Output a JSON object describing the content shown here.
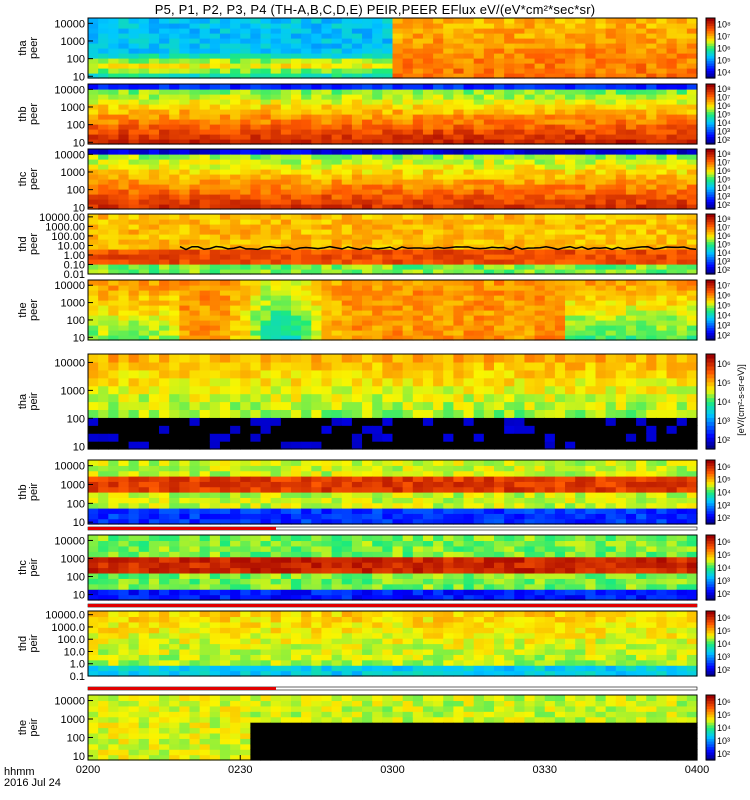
{
  "title": "P5, P1, P2, P3, P4 (TH-A,B,C,D,E) PEIR,PEER EFlux eV/(eV*cm²*sec*sr)",
  "footer": {
    "time_label": "hhmm",
    "date_label": "2016 Jul 24"
  },
  "colorbar_unit_label": "[eV/(cm²-s-sr-eV)]",
  "chart_data": [
    {
      "type": "heatmap",
      "panel": "tha-peer",
      "ylabel_lines": [
        "tha",
        "peer"
      ],
      "y_scale": "log",
      "ylim": [
        8,
        20000
      ],
      "yticks": [
        "10",
        "100",
        "1000",
        "10000"
      ],
      "colorbar_ticks": [
        "10⁴",
        "10⁵",
        "10⁶",
        "10⁷",
        "10⁸"
      ]
    },
    {
      "type": "heatmap",
      "panel": "thb-peer",
      "ylabel_lines": [
        "thb",
        "peer"
      ],
      "y_scale": "log",
      "ylim": [
        8,
        20000
      ],
      "yticks": [
        "10",
        "100",
        "1000",
        "10000"
      ],
      "colorbar_ticks": [
        "10²",
        "10³",
        "10⁴",
        "10⁵",
        "10⁶",
        "10⁷",
        "10⁸"
      ]
    },
    {
      "type": "heatmap",
      "panel": "thc-peer",
      "ylabel_lines": [
        "thc",
        "peer"
      ],
      "y_scale": "log",
      "ylim": [
        8,
        20000
      ],
      "yticks": [
        "10",
        "100",
        "1000",
        "10000"
      ],
      "colorbar_ticks": [
        "10²",
        "10³",
        "10⁴",
        "10⁵",
        "10⁶",
        "10⁷",
        "10⁸"
      ]
    },
    {
      "type": "heatmap",
      "panel": "thd-peer",
      "ylabel_lines": [
        "thd",
        "peer"
      ],
      "y_scale": "log",
      "ylim": [
        0.01,
        20000
      ],
      "yticks": [
        "0.01",
        "0.10",
        "1.00",
        "10.00",
        "100.00",
        "1000.00",
        "10000.00"
      ],
      "colorbar_ticks": [
        "10²",
        "10³",
        "10⁴",
        "10⁵",
        "10⁶",
        "10⁷",
        "10⁸"
      ]
    },
    {
      "type": "heatmap",
      "panel": "the-peer",
      "ylabel_lines": [
        "the",
        "peer"
      ],
      "y_scale": "log",
      "ylim": [
        7,
        20000
      ],
      "yticks": [
        "10",
        "100",
        "1000",
        "10000"
      ],
      "colorbar_ticks": [
        "10²",
        "10³",
        "10⁴",
        "10⁵",
        "10⁶",
        "10⁷"
      ]
    },
    {
      "type": "heatmap",
      "panel": "tha-peir",
      "ylabel_lines": [
        "tha",
        "peir"
      ],
      "y_scale": "log",
      "ylim": [
        8,
        20000
      ],
      "yticks": [
        "10",
        "100",
        "1000",
        "10000"
      ],
      "colorbar_ticks": [
        "10²",
        "10³",
        "10⁴",
        "10⁵",
        "10⁶"
      ]
    },
    {
      "type": "heatmap",
      "panel": "thb-peir",
      "ylabel_lines": [
        "thb",
        "peir"
      ],
      "y_scale": "log",
      "ylim": [
        8,
        20000
      ],
      "yticks": [
        "10",
        "100",
        "1000",
        "10000"
      ],
      "colorbar_ticks": [
        "10²",
        "10³",
        "10⁴",
        "10⁵",
        "10⁶"
      ]
    },
    {
      "type": "heatmap",
      "panel": "thc-peir",
      "ylabel_lines": [
        "thc",
        "peir"
      ],
      "y_scale": "log",
      "ylim": [
        5,
        20000
      ],
      "yticks": [
        "10",
        "100",
        "1000",
        "10000"
      ],
      "colorbar_ticks": [
        "10²",
        "10³",
        "10⁴",
        "10⁵",
        "10⁶"
      ]
    },
    {
      "type": "heatmap",
      "panel": "thd-peir",
      "ylabel_lines": [
        "thd",
        "peir"
      ],
      "y_scale": "log",
      "ylim": [
        0.1,
        20000
      ],
      "yticks": [
        "0.1",
        "1.0",
        "10.0",
        "100.0",
        "1000.0",
        "10000.0"
      ],
      "colorbar_ticks": [
        "10²",
        "10³",
        "10⁴",
        "10⁵",
        "10⁶"
      ]
    },
    {
      "type": "heatmap",
      "panel": "the-peir",
      "ylabel_lines": [
        "the",
        "peir"
      ],
      "y_scale": "log",
      "ylim": [
        6,
        20000
      ],
      "yticks": [
        "10",
        "100",
        "1000",
        "10000"
      ],
      "colorbar_ticks": [
        "10²",
        "10³",
        "10⁴",
        "10⁵",
        "10⁶"
      ]
    }
  ],
  "x_axis": {
    "label": "hhmm",
    "range": [
      "0200",
      "0400"
    ],
    "ticks": [
      "0200",
      "0230",
      "0300",
      "0330",
      "0400"
    ]
  }
}
